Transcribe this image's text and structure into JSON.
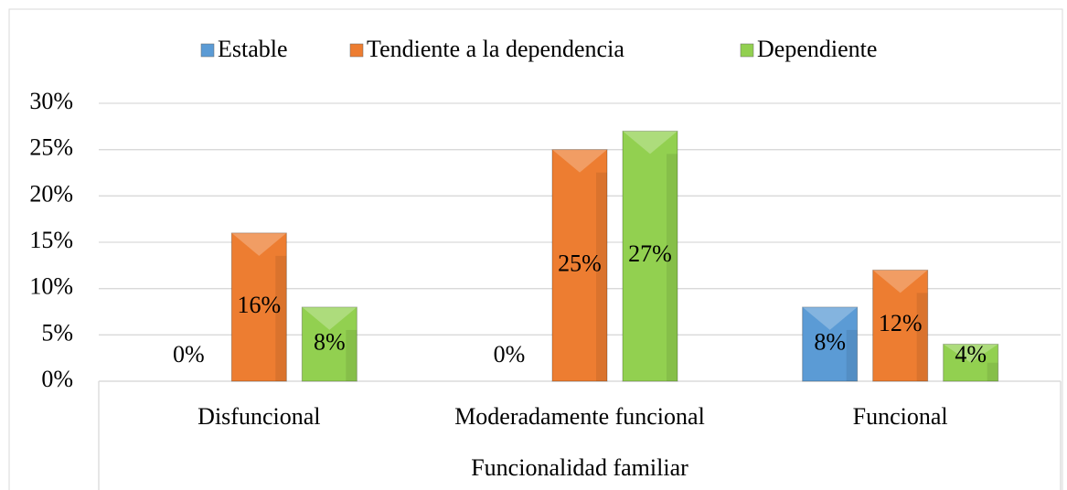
{
  "chart_data": {
    "type": "bar",
    "x_label": "Funcionalidad familiar",
    "categories": [
      "Disfuncional",
      "Moderadamente funcional",
      "Funcional"
    ],
    "series": [
      {
        "name": "Estable",
        "color": "#5b9bd5",
        "values": [
          0,
          0,
          8
        ],
        "value_labels": [
          "0%",
          "0%",
          "8%"
        ]
      },
      {
        "name": "Tendiente a la dependencia",
        "color": "#ed7d31",
        "values": [
          16,
          25,
          12
        ],
        "value_labels": [
          "16%",
          "25%",
          "12%"
        ]
      },
      {
        "name": "Dependiente",
        "color": "#92d050",
        "values": [
          8,
          27,
          4
        ],
        "value_labels": [
          "8%",
          "27%",
          "4%"
        ]
      }
    ],
    "ylim": [
      0,
      30
    ],
    "yticks": [
      {
        "value": 0,
        "label": "0%"
      },
      {
        "value": 5,
        "label": "5%"
      },
      {
        "value": 10,
        "label": "10%"
      },
      {
        "value": 15,
        "label": "15%"
      },
      {
        "value": 20,
        "label": "20%"
      },
      {
        "value": 25,
        "label": "25%"
      },
      {
        "value": 30,
        "label": "30%"
      }
    ],
    "grid": true,
    "legend": "top"
  }
}
